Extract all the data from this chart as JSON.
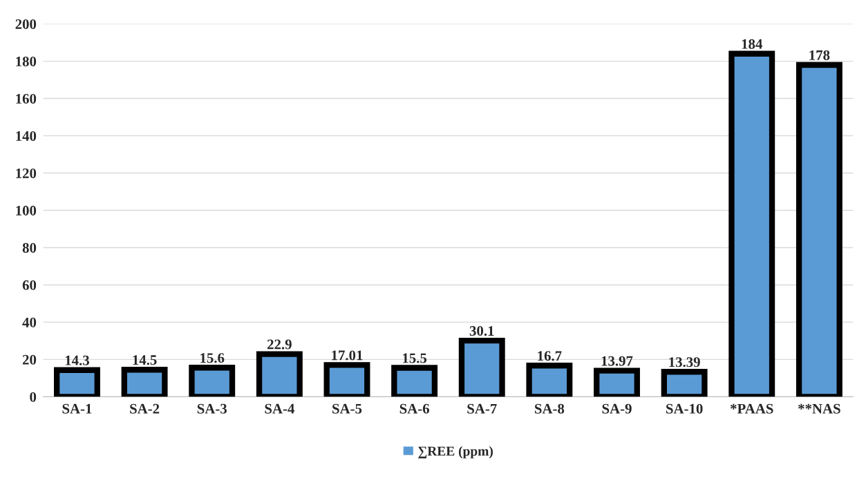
{
  "chart_data": {
    "type": "bar",
    "categories": [
      "SA-1",
      "SA-2",
      "SA-3",
      "SA-4",
      "SA-5",
      "SA-6",
      "SA-7",
      "SA-8",
      "SA-9",
      "SA-10",
      "*PAAS",
      "**NAS"
    ],
    "series": [
      {
        "name": "∑REE (ppm)",
        "color": "#5b9bd5",
        "values": [
          14.3,
          14.5,
          15.6,
          22.9,
          17.01,
          15.5,
          30.1,
          16.7,
          13.97,
          13.39,
          184,
          178
        ]
      }
    ],
    "ylim": [
      0,
      200
    ],
    "yticks": [
      0,
      20,
      40,
      60,
      80,
      100,
      120,
      140,
      160,
      180,
      200
    ],
    "grid": "y",
    "legend": "bottom",
    "data_labels": true
  }
}
